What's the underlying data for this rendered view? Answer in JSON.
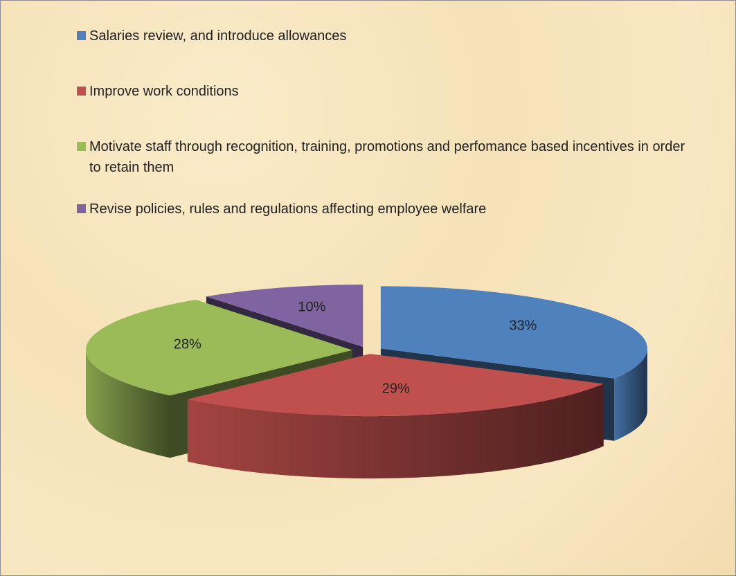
{
  "chart_data": {
    "type": "pie3d",
    "categories": [
      "Salaries review, and introduce allowances",
      "Improve work conditions",
      "Motivate staff through recognition, training, promotions and perfomance based incentives in order to retain them",
      "Revise policies, rules and regulations affecting employee welfare"
    ],
    "values": [
      33,
      29,
      28,
      10
    ],
    "value_labels": [
      "33%",
      "29%",
      "28%",
      "10%"
    ],
    "colors": [
      "#4f81bd",
      "#c0504d",
      "#9bbb59",
      "#8064a2"
    ],
    "legend": "top"
  }
}
